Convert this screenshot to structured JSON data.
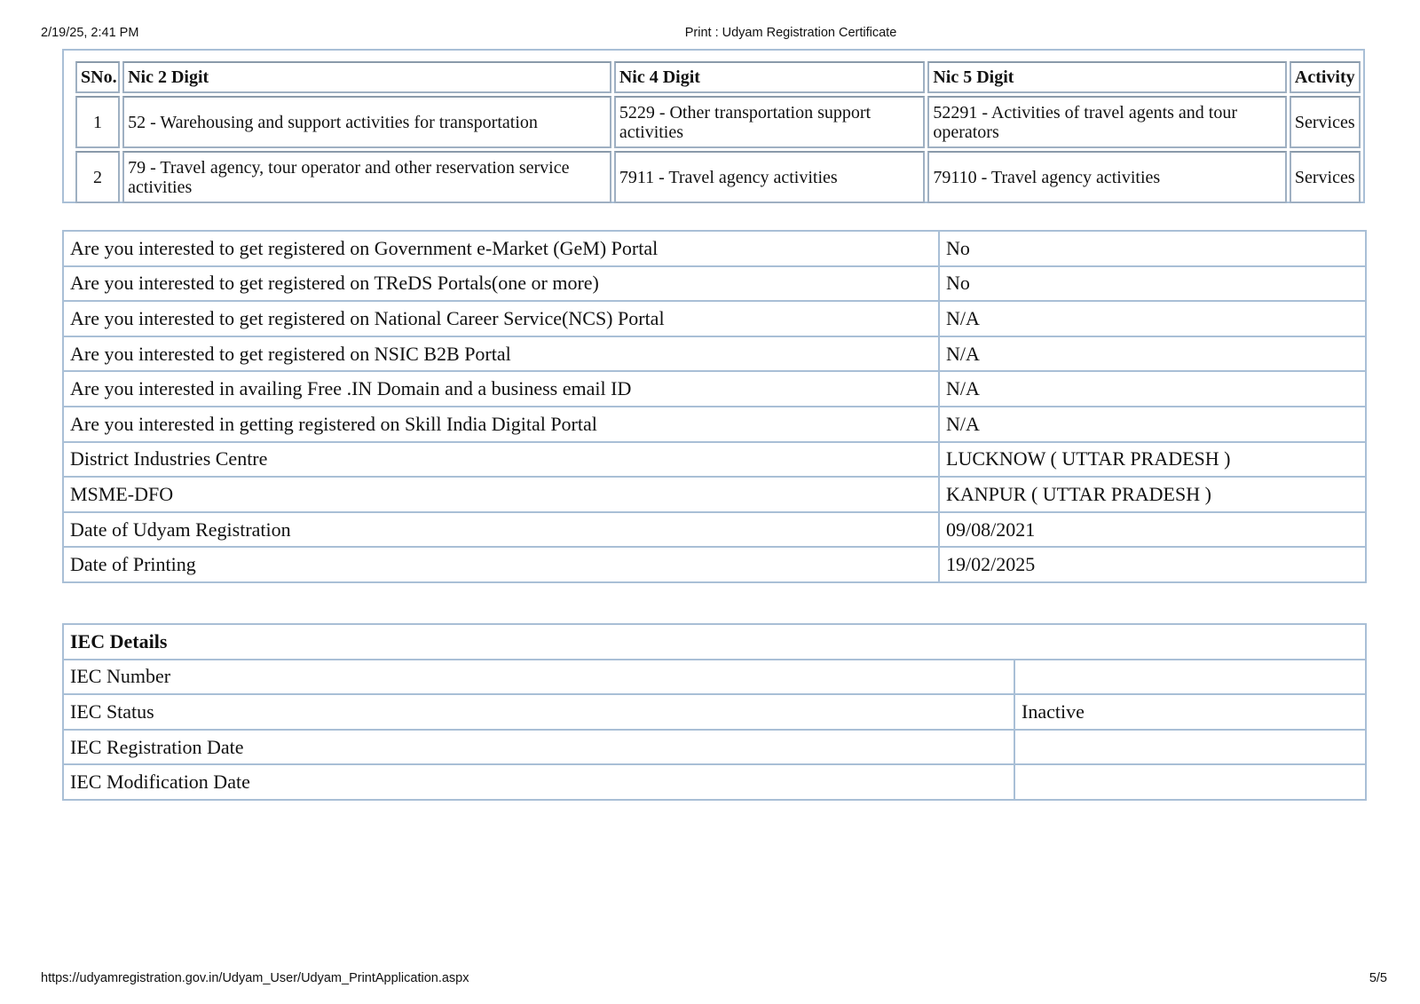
{
  "header": {
    "datetime": "2/19/25, 2:41 PM",
    "title": "Print : Udyam Registration Certificate"
  },
  "nic_table": {
    "columns": [
      "SNo.",
      "Nic 2 Digit",
      "Nic 4 Digit",
      "Nic 5 Digit",
      "Activity"
    ],
    "rows": [
      [
        "1",
        "52 - Warehousing and support activities for transportation",
        "5229 - Other transportation support activities",
        "52291 - Activities of travel agents and tour operators",
        "Services"
      ],
      [
        "2",
        "79 - Travel agency, tour operator and other reservation service activities",
        "7911 - Travel agency activities",
        "79110 - Travel agency activities",
        "Services"
      ]
    ]
  },
  "details": [
    [
      "Are you interested to get registered on Government e-Market (GeM) Portal",
      "No"
    ],
    [
      "Are you interested to get registered on TReDS Portals(one or more)",
      "No"
    ],
    [
      "Are you interested to get registered on National Career Service(NCS) Portal",
      "N/A"
    ],
    [
      "Are you interested to get registered on NSIC B2B Portal",
      "N/A"
    ],
    [
      "Are you interested in availing Free .IN Domain and a business email ID",
      "N/A"
    ],
    [
      "Are you interested in getting registered on Skill India Digital Portal",
      "N/A"
    ],
    [
      "District Industries Centre",
      "LUCKNOW ( UTTAR PRADESH )"
    ],
    [
      "MSME-DFO",
      "KANPUR ( UTTAR PRADESH )"
    ],
    [
      "Date of Udyam Registration",
      "09/08/2021"
    ],
    [
      "Date of Printing",
      "19/02/2025"
    ]
  ],
  "iec": {
    "title": "IEC Details",
    "rows": [
      [
        "IEC Number",
        ""
      ],
      [
        "IEC Status",
        "Inactive"
      ],
      [
        "IEC Registration Date",
        ""
      ],
      [
        "IEC Modification Date",
        ""
      ]
    ]
  },
  "footer": {
    "url": "https://udyamregistration.gov.in/Udyam_User/Udyam_PrintApplication.aspx",
    "page": "5/5"
  }
}
